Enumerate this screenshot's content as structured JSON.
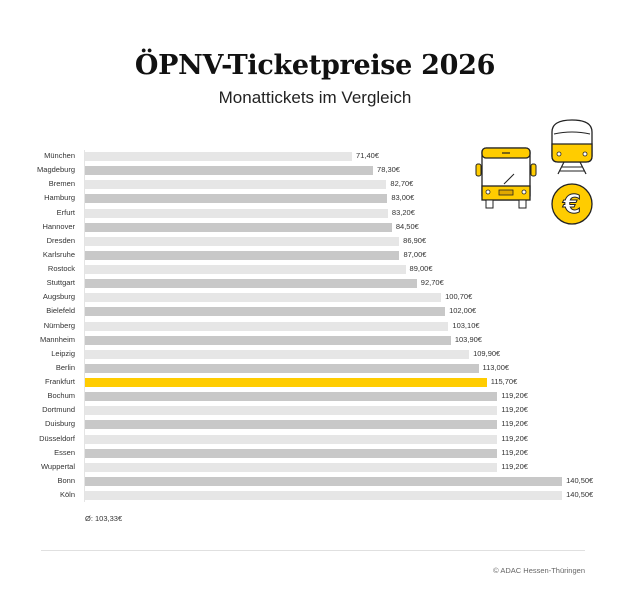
{
  "header": {
    "title": "ÖPNV-Ticketpreise 2026",
    "subtitle": "Monattickets im Vergleich"
  },
  "icons": [
    "bus-icon",
    "tram-icon",
    "euro-coin-icon"
  ],
  "colors": {
    "highlight": "#ffcc00",
    "bar_light": "#e6e6e6",
    "bar_dark": "#c8c8c8",
    "icon_yellow": "#ffcc00"
  },
  "chart_data": {
    "type": "bar",
    "orientation": "horizontal",
    "title": "ÖPNV-Ticketpreise 2026",
    "subtitle": "Monattickets im Vergleich",
    "xlabel": "",
    "ylabel": "",
    "unit": "€",
    "grid": false,
    "legend": null,
    "highlighted_category": "Frankfurt",
    "categories": [
      "München",
      "Magdeburg",
      "Bremen",
      "Hamburg",
      "Erfurt",
      "Hannover",
      "Dresden",
      "Karlsruhe",
      "Rostock",
      "Stuttgart",
      "Augsburg",
      "Bielefeld",
      "Nürnberg",
      "Mannheim",
      "Leipzig",
      "Berlin",
      "Frankfurt",
      "Bochum",
      "Dortmund",
      "Duisburg",
      "Düsseldorf",
      "Essen",
      "Wuppertal",
      "Bonn",
      "Köln"
    ],
    "values": [
      71.4,
      78.3,
      82.7,
      83.0,
      83.2,
      84.5,
      86.9,
      87.0,
      89.0,
      92.7,
      100.7,
      102.0,
      103.1,
      103.9,
      109.9,
      113.0,
      115.7,
      119.2,
      119.2,
      119.2,
      119.2,
      119.2,
      119.2,
      140.5,
      140.5
    ],
    "value_labels": [
      "71,40€",
      "78,30€",
      "82,70€",
      "83,00€",
      "83,20€",
      "84,50€",
      "86,90€",
      "87,00€",
      "89,00€",
      "92,70€",
      "100,70€",
      "102,00€",
      "103,10€",
      "103,90€",
      "109,90€",
      "113,00€",
      "115,70€",
      "119,20€",
      "119,20€",
      "119,20€",
      "119,20€",
      "119,20€",
      "119,20€",
      "140,50€",
      "140,50€"
    ],
    "average_label": "Ø: 103,33€",
    "average": 103.33
  },
  "footer": {
    "credit": "© ADAC Hessen-Thüringen"
  }
}
